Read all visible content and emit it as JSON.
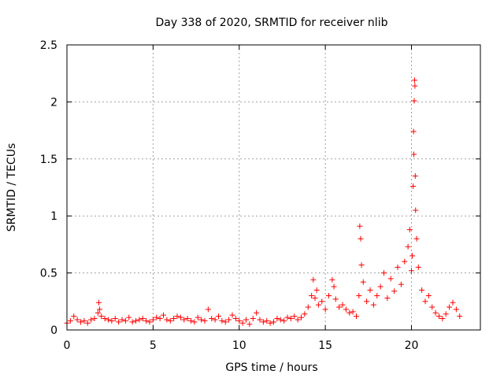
{
  "chart_data": {
    "type": "scatter",
    "title": "Day 338 of 2020, SRMTID for receiver nlib",
    "xlabel": "GPS time / hours",
    "ylabel": "SRMTID / TECUs",
    "xlim": [
      0,
      24
    ],
    "ylim": [
      0,
      2.5
    ],
    "xticks": [
      0,
      5,
      10,
      15,
      20
    ],
    "xtick_labels": [
      "0",
      "5",
      "10",
      "15",
      "20"
    ],
    "yticks": [
      0,
      0.5,
      1,
      1.5,
      2,
      2.5
    ],
    "ytick_labels": [
      "0",
      "0.5",
      "1",
      "1.5",
      "2",
      "2.5"
    ],
    "grid": true,
    "marker": "+",
    "marker_color": "#ff0000",
    "series": [
      {
        "name": "SRMTID",
        "x": [
          0.0,
          0.2,
          0.4,
          0.6,
          0.8,
          1.0,
          1.2,
          1.4,
          1.6,
          1.8,
          1.85,
          1.9,
          2.0,
          2.2,
          2.4,
          2.6,
          2.8,
          3.0,
          3.2,
          3.4,
          3.6,
          3.8,
          4.0,
          4.2,
          4.4,
          4.6,
          4.8,
          5.0,
          5.2,
          5.4,
          5.6,
          5.8,
          6.0,
          6.2,
          6.4,
          6.6,
          6.8,
          7.0,
          7.2,
          7.4,
          7.6,
          7.8,
          8.0,
          8.2,
          8.4,
          8.6,
          8.8,
          9.0,
          9.2,
          9.4,
          9.6,
          9.8,
          10.0,
          10.2,
          10.4,
          10.6,
          10.8,
          11.0,
          11.2,
          11.4,
          11.6,
          11.8,
          12.0,
          12.2,
          12.4,
          12.6,
          12.8,
          13.0,
          13.2,
          13.4,
          13.6,
          13.8,
          14.0,
          14.2,
          14.3,
          14.4,
          14.5,
          14.6,
          14.8,
          15.0,
          15.2,
          15.4,
          15.5,
          15.6,
          15.8,
          16.0,
          16.2,
          16.4,
          16.6,
          16.8,
          16.95,
          17.0,
          17.05,
          17.1,
          17.2,
          17.4,
          17.6,
          17.8,
          18.0,
          18.2,
          18.4,
          18.6,
          18.8,
          19.0,
          19.2,
          19.4,
          19.6,
          19.8,
          19.9,
          20.0,
          20.05,
          20.1,
          20.12,
          20.14,
          20.16,
          20.18,
          20.2,
          20.22,
          20.24,
          20.3,
          20.4,
          20.6,
          20.8,
          21.0,
          21.2,
          21.4,
          21.6,
          21.8,
          22.0,
          22.2,
          22.4,
          22.6,
          22.8
        ],
        "y": [
          0.06,
          0.08,
          0.12,
          0.09,
          0.07,
          0.08,
          0.06,
          0.09,
          0.1,
          0.15,
          0.24,
          0.18,
          0.12,
          0.1,
          0.09,
          0.08,
          0.1,
          0.07,
          0.09,
          0.08,
          0.11,
          0.07,
          0.08,
          0.09,
          0.1,
          0.08,
          0.07,
          0.09,
          0.11,
          0.1,
          0.13,
          0.09,
          0.08,
          0.1,
          0.12,
          0.11,
          0.09,
          0.1,
          0.08,
          0.07,
          0.11,
          0.09,
          0.08,
          0.18,
          0.1,
          0.09,
          0.12,
          0.08,
          0.07,
          0.09,
          0.13,
          0.1,
          0.08,
          0.06,
          0.09,
          0.05,
          0.1,
          0.15,
          0.09,
          0.07,
          0.08,
          0.06,
          0.07,
          0.1,
          0.09,
          0.08,
          0.11,
          0.1,
          0.12,
          0.09,
          0.11,
          0.14,
          0.2,
          0.3,
          0.44,
          0.28,
          0.35,
          0.22,
          0.25,
          0.18,
          0.3,
          0.44,
          0.38,
          0.27,
          0.2,
          0.22,
          0.18,
          0.15,
          0.16,
          0.12,
          0.3,
          0.91,
          0.8,
          0.57,
          0.42,
          0.25,
          0.35,
          0.22,
          0.3,
          0.38,
          0.5,
          0.28,
          0.45,
          0.34,
          0.55,
          0.4,
          0.6,
          0.73,
          0.88,
          0.52,
          0.65,
          1.26,
          1.74,
          1.54,
          2.01,
          2.19,
          2.14,
          1.35,
          1.05,
          0.8,
          0.55,
          0.35,
          0.25,
          0.3,
          0.2,
          0.15,
          0.12,
          0.1,
          0.14,
          0.2,
          0.24,
          0.18,
          0.12
        ]
      }
    ]
  }
}
